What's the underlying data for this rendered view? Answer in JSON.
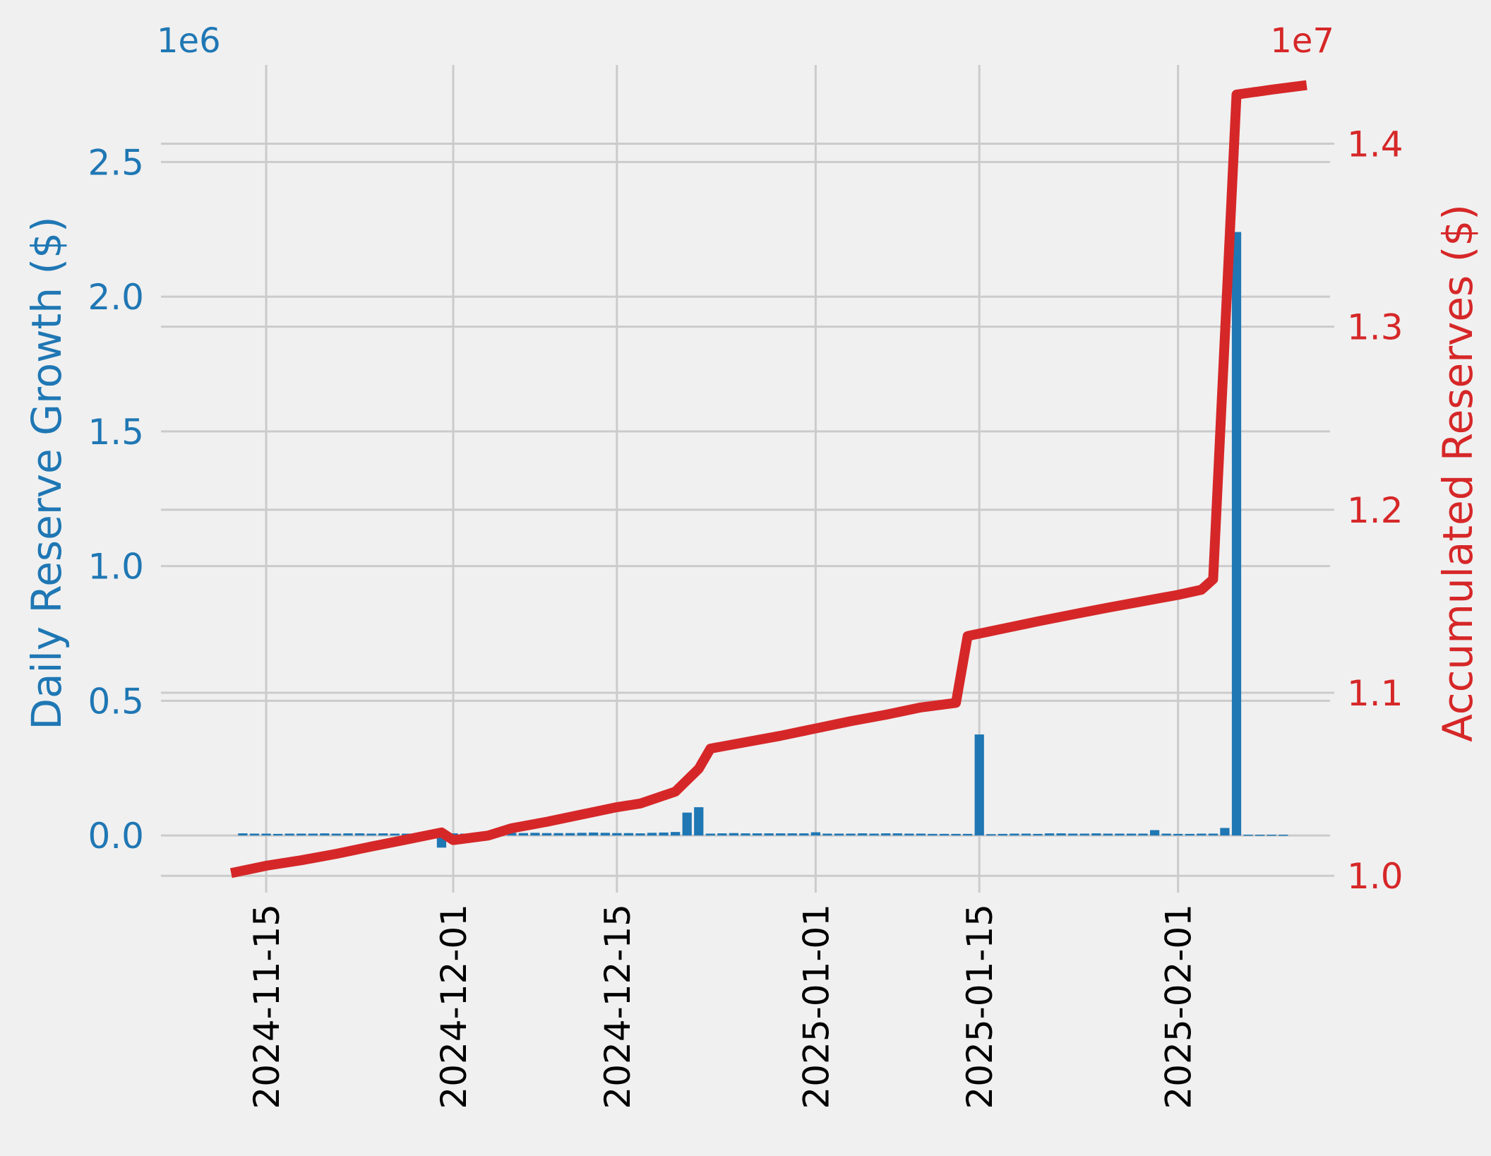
{
  "colors": {
    "background": "#f0f0f0",
    "grid": "#cbcbcb",
    "bar": "#1f77b4",
    "line": "#d62728",
    "x_tick_text": "#000000"
  },
  "chart_data": {
    "type": "bar+line",
    "x_type": "date",
    "x_tick_labels": [
      "2024-11-15",
      "2024-12-01",
      "2024-12-15",
      "2025-01-01",
      "2025-01-15",
      "2025-02-01"
    ],
    "xlim": [
      "2024-11-06",
      "2025-02-14"
    ],
    "left_axis": {
      "label": "Daily Reserve Growth ($)",
      "multiplier": "1e6",
      "ylim": [
        -0.17,
        2.86
      ],
      "ticks": [
        0.0,
        0.5,
        1.0,
        1.5,
        2.0,
        2.5
      ],
      "tick_labels": [
        "0.0",
        "0.5",
        "1.0",
        "1.5",
        "2.0",
        "2.5"
      ]
    },
    "right_axis": {
      "label": "Accumulated Reserves ($)",
      "multiplier": "1e7",
      "ylim": [
        0.997,
        1.443
      ],
      "ticks": [
        1.0,
        1.1,
        1.2,
        1.3,
        1.4
      ],
      "tick_labels": [
        "1.0",
        "1.1",
        "1.2",
        "1.3",
        "1.4"
      ]
    },
    "grid": true,
    "series": [
      {
        "kind": "bar",
        "axis": "left",
        "dates": [
          "2024-11-13",
          "2024-11-14",
          "2024-11-15",
          "2024-11-16",
          "2024-11-17",
          "2024-11-18",
          "2024-11-19",
          "2024-11-20",
          "2024-11-21",
          "2024-11-22",
          "2024-11-23",
          "2024-11-24",
          "2024-11-25",
          "2024-11-26",
          "2024-11-27",
          "2024-11-28",
          "2024-11-29",
          "2024-11-30",
          "2024-12-01",
          "2024-12-02",
          "2024-12-03",
          "2024-12-04",
          "2024-12-05",
          "2024-12-06",
          "2024-12-07",
          "2024-12-08",
          "2024-12-09",
          "2024-12-10",
          "2024-12-11",
          "2024-12-12",
          "2024-12-13",
          "2024-12-14",
          "2024-12-15",
          "2024-12-16",
          "2024-12-17",
          "2024-12-18",
          "2024-12-19",
          "2024-12-20",
          "2024-12-21",
          "2024-12-22",
          "2024-12-23",
          "2024-12-24",
          "2024-12-25",
          "2024-12-26",
          "2024-12-27",
          "2024-12-28",
          "2024-12-29",
          "2024-12-30",
          "2024-12-31",
          "2025-01-01",
          "2025-01-02",
          "2025-01-03",
          "2025-01-04",
          "2025-01-05",
          "2025-01-06",
          "2025-01-07",
          "2025-01-08",
          "2025-01-09",
          "2025-01-10",
          "2025-01-11",
          "2025-01-12",
          "2025-01-13",
          "2025-01-14",
          "2025-01-15",
          "2025-01-16",
          "2025-01-17",
          "2025-01-18",
          "2025-01-19",
          "2025-01-20",
          "2025-01-21",
          "2025-01-22",
          "2025-01-23",
          "2025-01-24",
          "2025-01-25",
          "2025-01-26",
          "2025-01-27",
          "2025-01-28",
          "2025-01-29",
          "2025-01-30",
          "2025-01-31",
          "2025-02-01",
          "2025-02-02",
          "2025-02-03",
          "2025-02-04",
          "2025-02-05",
          "2025-02-06",
          "2025-02-07",
          "2025-02-08",
          "2025-02-09",
          "2025-02-10"
        ],
        "values": [
          0.008,
          0.007,
          0.007,
          0.006,
          0.007,
          0.007,
          0.007,
          0.008,
          0.007,
          0.008,
          0.008,
          0.007,
          0.008,
          0.007,
          0.007,
          0.008,
          0.007,
          -0.045,
          0.008,
          0.007,
          0.008,
          0.007,
          0.015,
          0.01,
          0.009,
          0.01,
          0.009,
          0.009,
          0.009,
          0.01,
          0.011,
          0.01,
          0.009,
          0.009,
          0.008,
          0.01,
          0.011,
          0.013,
          0.085,
          0.105,
          0.007,
          0.008,
          0.009,
          0.008,
          0.008,
          0.008,
          0.008,
          0.008,
          0.008,
          0.012,
          0.007,
          0.007,
          0.007,
          0.008,
          0.007,
          0.008,
          0.008,
          0.007,
          0.007,
          0.006,
          0.006,
          0.006,
          0.006,
          0.375,
          0.005,
          0.006,
          0.007,
          0.007,
          0.006,
          0.008,
          0.008,
          0.007,
          0.007,
          0.008,
          0.007,
          0.007,
          0.007,
          0.007,
          0.02,
          0.007,
          0.006,
          0.006,
          0.007,
          0.007,
          0.028,
          2.24,
          0.003,
          0.003,
          0.003,
          0.003
        ]
      },
      {
        "kind": "line",
        "axis": "right",
        "points": [
          [
            "2024-11-12",
            1.0015
          ],
          [
            "2024-11-15",
            1.0055
          ],
          [
            "2024-11-18",
            1.0085
          ],
          [
            "2024-11-21",
            1.012
          ],
          [
            "2024-11-24",
            1.016
          ],
          [
            "2024-11-27",
            1.0198
          ],
          [
            "2024-11-30",
            1.0237
          ],
          [
            "2024-12-01",
            1.0195
          ],
          [
            "2024-12-04",
            1.022
          ],
          [
            "2024-12-06",
            1.026
          ],
          [
            "2024-12-09",
            1.0295
          ],
          [
            "2024-12-12",
            1.0335
          ],
          [
            "2024-12-15",
            1.0375
          ],
          [
            "2024-12-17",
            1.0395
          ],
          [
            "2024-12-20",
            1.046
          ],
          [
            "2024-12-22",
            1.0585
          ],
          [
            "2024-12-23",
            1.0695
          ],
          [
            "2024-12-26",
            1.073
          ],
          [
            "2024-12-29",
            1.0765
          ],
          [
            "2025-01-01",
            1.0805
          ],
          [
            "2025-01-04",
            1.0845
          ],
          [
            "2025-01-07",
            1.088
          ],
          [
            "2025-01-10",
            1.092
          ],
          [
            "2025-01-13",
            1.0945
          ],
          [
            "2025-01-14",
            1.131
          ],
          [
            "2025-01-17",
            1.135
          ],
          [
            "2025-01-20",
            1.139
          ],
          [
            "2025-01-23",
            1.1428
          ],
          [
            "2025-01-26",
            1.1465
          ],
          [
            "2025-01-29",
            1.15
          ],
          [
            "2025-02-01",
            1.1535
          ],
          [
            "2025-02-03",
            1.1563
          ],
          [
            "2025-02-04",
            1.162
          ],
          [
            "2025-02-06",
            1.4268
          ],
          [
            "2025-02-09",
            1.4295
          ],
          [
            "2025-02-12",
            1.432
          ]
        ]
      }
    ]
  }
}
